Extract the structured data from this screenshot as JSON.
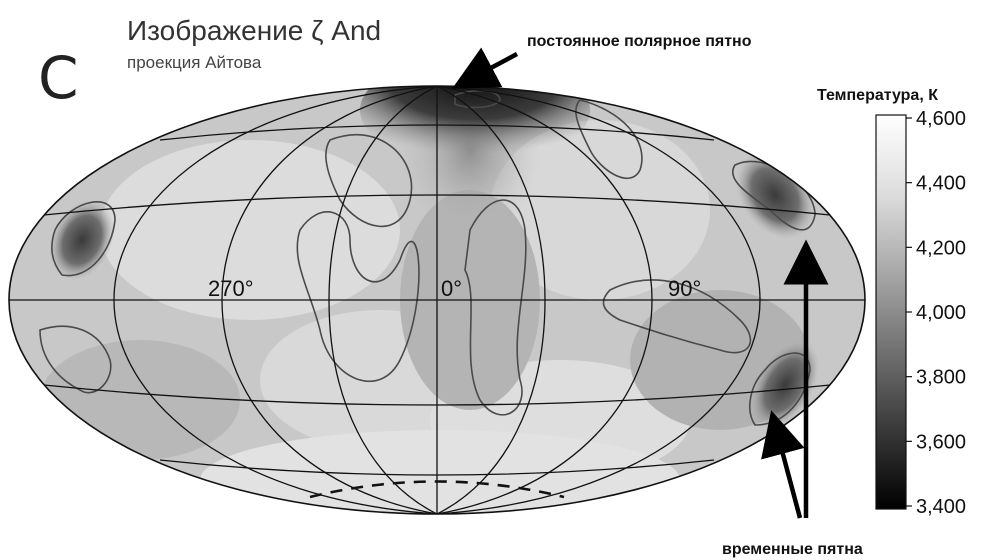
{
  "panel_letter": "C",
  "title": "Изображение ζ And",
  "subtitle": "проекция Айтова",
  "annotations": {
    "polar_spot": "постоянное полярное пятно",
    "temporary_spots": "временные пятна"
  },
  "map": {
    "projection": "Aitoff",
    "longitude_labels": [
      "270°",
      "0°",
      "90°"
    ]
  },
  "colorbar": {
    "title": "Температура, К",
    "ticks": [
      "4,600",
      "4,400",
      "4,200",
      "4,000",
      "3,800",
      "3,600",
      "3,400"
    ],
    "range": [
      3400,
      4600
    ]
  },
  "colors": {
    "cold": "#000000",
    "hot": "#ffffff"
  }
}
